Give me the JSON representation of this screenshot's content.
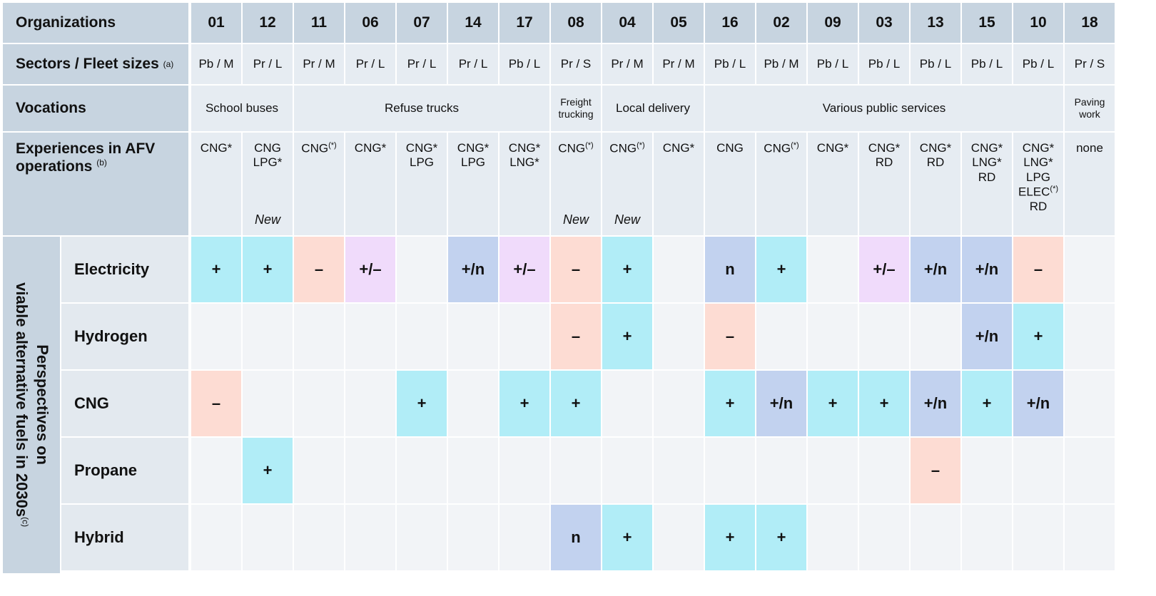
{
  "header": {
    "organizations_label": "Organizations",
    "sectors_label": "Sectors / Fleet sizes",
    "sectors_note": "(a)",
    "vocations_label": "Vocations",
    "experiences_label_1": "Experiences in AFV",
    "experiences_label_2": "operations",
    "experiences_note": "(b)",
    "perspectives_line1": "Perspectives on",
    "perspectives_line2": "viable alternative fuels in 2030s",
    "perspectives_note": "(c)"
  },
  "organizations": [
    "01",
    "12",
    "11",
    "06",
    "07",
    "14",
    "17",
    "08",
    "04",
    "05",
    "16",
    "02",
    "09",
    "03",
    "13",
    "15",
    "10",
    "18"
  ],
  "sectors": [
    "Pb / M",
    "Pr / L",
    "Pr / M",
    "Pr / L",
    "Pr / L",
    "Pr / L",
    "Pb / L",
    "Pr / S",
    "Pr / M",
    "Pr / M",
    "Pb / L",
    "Pb / M",
    "Pb / L",
    "Pb / L",
    "Pb / L",
    "Pb / L",
    "Pb / L",
    "Pr / S"
  ],
  "vocations": [
    {
      "label": "School buses",
      "span": 2
    },
    {
      "label": "Refuse trucks",
      "span": 5
    },
    {
      "label": "Freight trucking",
      "span": 1
    },
    {
      "label": "Local delivery",
      "span": 2
    },
    {
      "label": "Various public services",
      "span": 7
    },
    {
      "label": "Paving work",
      "span": 1
    }
  ],
  "experiences": [
    {
      "lines": [
        "CNG*"
      ],
      "note": ""
    },
    {
      "lines": [
        "CNG",
        "LPG*"
      ],
      "note": "New"
    },
    {
      "lines": [
        "CNG(*)"
      ],
      "note": ""
    },
    {
      "lines": [
        "CNG*"
      ],
      "note": ""
    },
    {
      "lines": [
        "CNG*",
        "LPG"
      ],
      "note": ""
    },
    {
      "lines": [
        "CNG*",
        "LPG"
      ],
      "note": ""
    },
    {
      "lines": [
        "CNG*",
        "LNG*"
      ],
      "note": ""
    },
    {
      "lines": [
        "CNG(*)"
      ],
      "note": "New"
    },
    {
      "lines": [
        "CNG(*)"
      ],
      "note": "New"
    },
    {
      "lines": [
        "CNG*"
      ],
      "note": ""
    },
    {
      "lines": [
        "CNG"
      ],
      "note": ""
    },
    {
      "lines": [
        "CNG(*)"
      ],
      "note": ""
    },
    {
      "lines": [
        "CNG*"
      ],
      "note": ""
    },
    {
      "lines": [
        "CNG*",
        "RD"
      ],
      "note": ""
    },
    {
      "lines": [
        "CNG*",
        "RD"
      ],
      "note": ""
    },
    {
      "lines": [
        "CNG*",
        "LNG*",
        "RD"
      ],
      "note": ""
    },
    {
      "lines": [
        "CNG*",
        "LNG*",
        "LPG",
        "ELEC(*)",
        "RD"
      ],
      "note": ""
    },
    {
      "lines": [
        "none"
      ],
      "note": ""
    }
  ],
  "colors": {
    "+": "#b1edf7",
    "-": "#fddcd3",
    "+/-": "#f0dbfb",
    "+/n": "#c2d2ef",
    "n": "#c2d2ef",
    "empty": "#f2f4f7"
  },
  "chart_data": {
    "type": "table",
    "columns": [
      "01",
      "12",
      "11",
      "06",
      "07",
      "14",
      "17",
      "08",
      "04",
      "05",
      "16",
      "02",
      "09",
      "03",
      "13",
      "15",
      "10",
      "18"
    ],
    "rows": [
      {
        "fuel": "Electricity",
        "values": [
          "+",
          "+",
          "–",
          "+/–",
          "",
          "+/n",
          "+/–",
          "–",
          "+",
          "",
          "n",
          "+",
          "",
          "+/–",
          "+/n",
          "+/n",
          "–",
          ""
        ]
      },
      {
        "fuel": "Hydrogen",
        "values": [
          "",
          "",
          "",
          "",
          "",
          "",
          "",
          "–",
          "+",
          "",
          "–",
          "",
          "",
          "",
          "",
          "+/n",
          "+",
          ""
        ]
      },
      {
        "fuel": "CNG",
        "values": [
          "–",
          "",
          "",
          "",
          "+",
          "",
          "+",
          "+",
          "",
          "",
          "+",
          "+/n",
          "+",
          "+",
          "+/n",
          "+",
          "+/n",
          ""
        ]
      },
      {
        "fuel": "Propane",
        "values": [
          "",
          "+",
          "",
          "",
          "",
          "",
          "",
          "",
          "",
          "",
          "",
          "",
          "",
          "",
          "–",
          "",
          "",
          ""
        ]
      },
      {
        "fuel": "Hybrid",
        "values": [
          "",
          "",
          "",
          "",
          "",
          "",
          "",
          "n",
          "+",
          "",
          "+",
          "+",
          "",
          "",
          "",
          "",
          "",
          ""
        ]
      }
    ]
  }
}
